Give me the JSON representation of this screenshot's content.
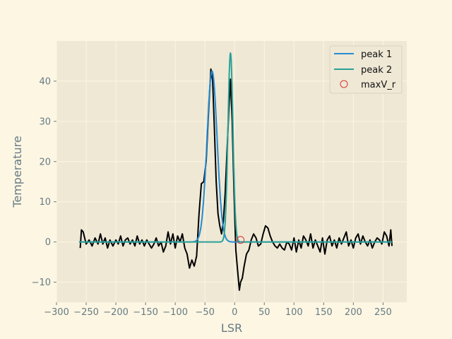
{
  "chart_data": {
    "type": "line",
    "title": "",
    "xlabel": "LSR",
    "ylabel": "Temperature",
    "xlim": [
      -300,
      290
    ],
    "ylim": [
      -15,
      50
    ],
    "xticks": [
      -300,
      -250,
      -200,
      -150,
      -100,
      -50,
      0,
      50,
      100,
      150,
      200,
      250
    ],
    "yticks": [
      -10,
      0,
      10,
      20,
      30,
      40
    ],
    "grid": true,
    "legend_position": "upper right",
    "series": [
      {
        "type": "spectrum",
        "color": "#000000",
        "x": [
          -260,
          -258,
          -255,
          -250,
          -245,
          -240,
          -235,
          -230,
          -226,
          -222,
          -218,
          -214,
          -210,
          -205,
          -200,
          -196,
          -192,
          -188,
          -184,
          -180,
          -176,
          -172,
          -168,
          -164,
          -160,
          -156,
          -152,
          -148,
          -144,
          -140,
          -136,
          -132,
          -128,
          -124,
          -120,
          -116,
          -112,
          -108,
          -104,
          -100,
          -96,
          -92,
          -88,
          -84,
          -80,
          -76,
          -72,
          -68,
          -64,
          -60,
          -56,
          -52,
          -48,
          -44,
          -40,
          -37,
          -34,
          -31,
          -28,
          -25,
          -22,
          -19,
          -16,
          -13,
          -10,
          -7,
          -4,
          -1,
          2,
          5,
          8,
          10,
          13,
          16,
          20,
          24,
          28,
          32,
          36,
          40,
          44,
          48,
          52,
          56,
          60,
          64,
          68,
          72,
          76,
          80,
          84,
          88,
          92,
          96,
          100,
          104,
          108,
          112,
          116,
          120,
          124,
          128,
          132,
          136,
          140,
          144,
          148,
          152,
          156,
          160,
          164,
          168,
          172,
          176,
          180,
          184,
          188,
          192,
          196,
          200,
          204,
          208,
          212,
          216,
          220,
          224,
          228,
          232,
          236,
          240,
          244,
          248,
          252,
          256,
          260,
          263,
          265
        ],
        "values": [
          -1.5,
          3.0,
          2.5,
          -0.5,
          0.5,
          -1.0,
          1.0,
          -0.5,
          2.0,
          -0.5,
          1.0,
          -1.5,
          0.5,
          -1.0,
          0.5,
          -0.5,
          1.5,
          -1.0,
          0.5,
          1.0,
          -0.5,
          0.5,
          -1.0,
          1.5,
          -0.5,
          0.5,
          -1.0,
          0.5,
          -0.5,
          -1.5,
          -0.5,
          1.0,
          -1.0,
          0.0,
          -2.5,
          -1.0,
          2.5,
          -0.5,
          2.0,
          -1.5,
          1.5,
          0.0,
          2.0,
          -1.5,
          -3.0,
          -6.5,
          -4.5,
          -6.0,
          -3.5,
          7.0,
          14.5,
          15.0,
          20.0,
          32.0,
          43.0,
          40.0,
          28.0,
          15.0,
          7.0,
          4.0,
          2.0,
          5.0,
          12.0,
          22.0,
          32.0,
          40.5,
          30.0,
          12.0,
          -2.0,
          -7.0,
          -12.0,
          -10.0,
          -9.0,
          -6.0,
          -3.0,
          -2.0,
          0.5,
          2.0,
          1.0,
          -1.0,
          -0.5,
          2.0,
          4.0,
          3.5,
          1.5,
          0.0,
          -1.0,
          -1.5,
          -0.5,
          -1.5,
          -2.0,
          0.0,
          -0.5,
          -2.0,
          1.0,
          -2.5,
          0.5,
          -1.5,
          1.5,
          0.5,
          -1.0,
          2.0,
          -1.5,
          0.5,
          -1.0,
          -2.5,
          1.0,
          -3.0,
          0.5,
          1.5,
          -1.0,
          0.5,
          -1.5,
          1.0,
          -0.5,
          1.0,
          2.5,
          -1.0,
          0.5,
          -1.5,
          1.0,
          2.0,
          -0.5,
          1.5,
          0.0,
          -1.0,
          0.5,
          -1.5,
          0.0,
          1.0,
          0.5,
          -0.5,
          2.5,
          1.5,
          -1.0,
          3.0,
          -1.0
        ]
      },
      {
        "name": "peak 1",
        "type": "gaussian",
        "color": "#268bd2",
        "amplitude": 42.5,
        "center": -38,
        "sigma": 8.5
      },
      {
        "name": "peak 2",
        "type": "gaussian",
        "color": "#2aa198",
        "amplitude": 47,
        "center": -7,
        "sigma": 4.2
      },
      {
        "name": "maxV_r",
        "type": "scatter",
        "color": "#dc322f",
        "x": [
          10
        ],
        "values": [
          0.5
        ]
      }
    ]
  }
}
